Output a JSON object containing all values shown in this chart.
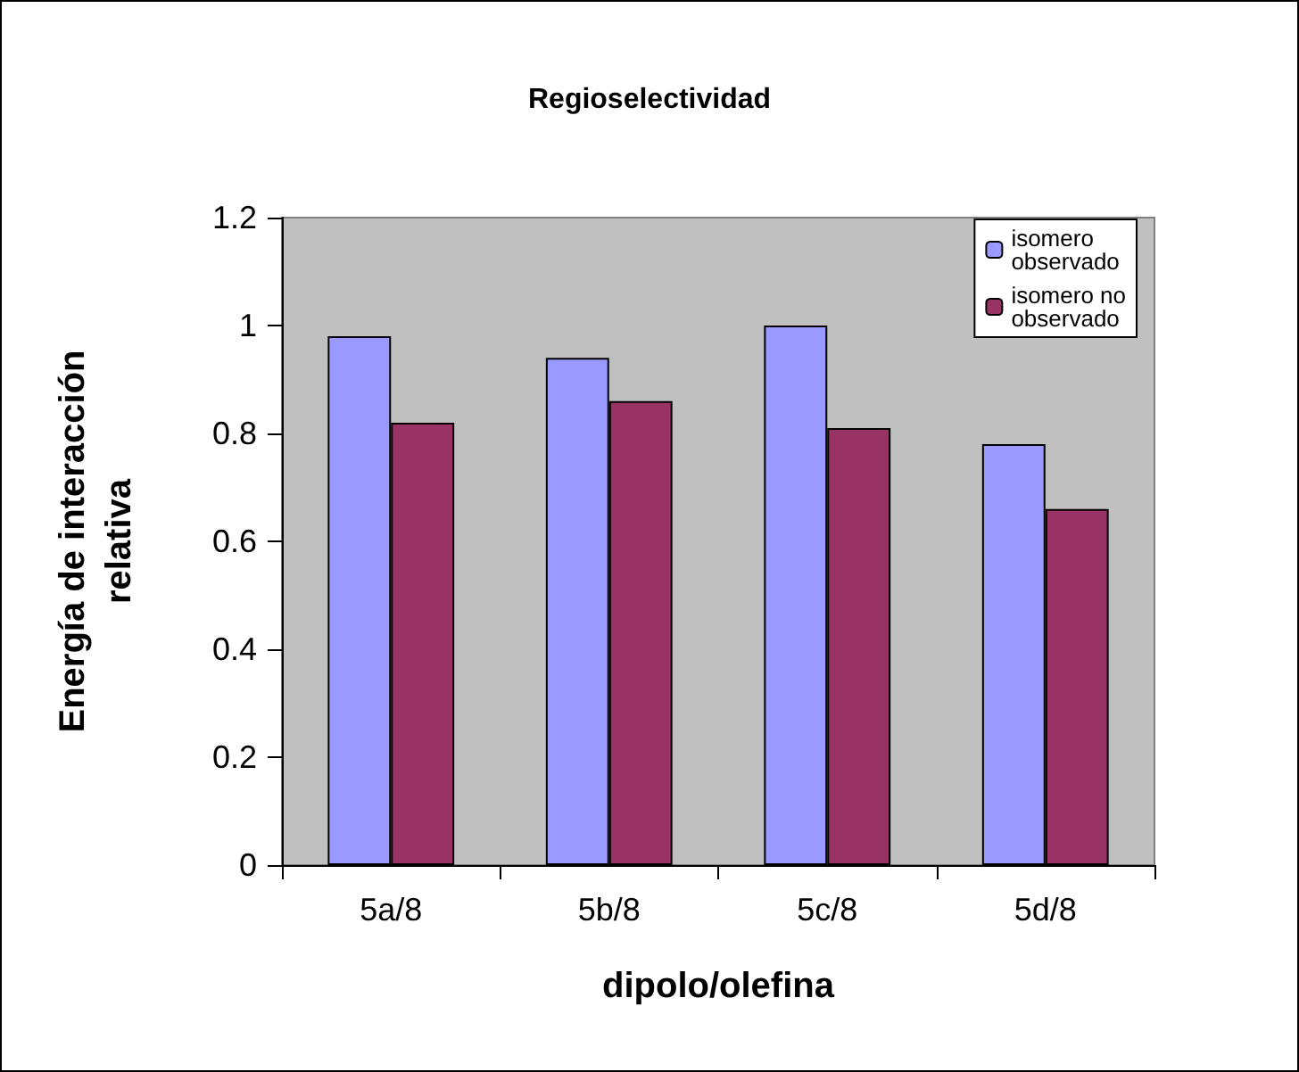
{
  "chart_data": {
    "type": "bar",
    "title": "Regioselectividad",
    "xlabel": "dipolo/olefina",
    "ylabel": "Energía de interacción\nrelativa",
    "categories": [
      "5a/8",
      "5b/8",
      "5c/8",
      "5d/8"
    ],
    "series": [
      {
        "name": "isomero\nobservado",
        "color": "#9999ff",
        "values": [
          0.98,
          0.94,
          1.0,
          0.78
        ]
      },
      {
        "name": "isomero no\nobservado",
        "color": "#993366",
        "values": [
          0.82,
          0.86,
          0.81,
          0.66
        ]
      }
    ],
    "ylim": [
      0,
      1.2
    ],
    "yticks": [
      0,
      0.2,
      0.4,
      0.6,
      0.8,
      1,
      1.2
    ],
    "grid": false,
    "legend": "top right"
  }
}
